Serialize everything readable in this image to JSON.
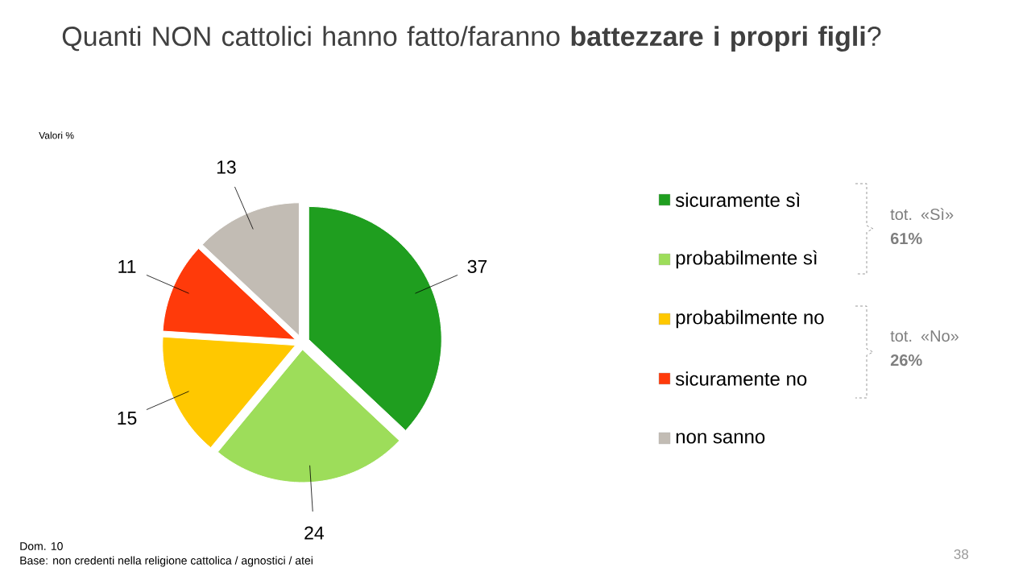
{
  "chart_data": {
    "type": "pie",
    "title": "Quanti NON cattolici hanno fatto/faranno **battezzare i propri figli**?",
    "subtitle": "Valori %",
    "categories": [
      "sicuramente sì",
      "probabilmente sì",
      "probabilmente no",
      "sicuramente no",
      "non sanno"
    ],
    "values": [
      37,
      24,
      15,
      11,
      13
    ],
    "colors": [
      "#1f9e1f",
      "#9ddd5a",
      "#ffc800",
      "#ff3a0a",
      "#c2bcb4"
    ],
    "data_labels": true,
    "legend": "right",
    "annotations": [
      "tot. «Sì» **61%**",
      "tot. «No» **26%**",
      "Dom. 10",
      "Base: non credenti nella religione cattolica / agnostici / atei",
      "38"
    ]
  }
}
